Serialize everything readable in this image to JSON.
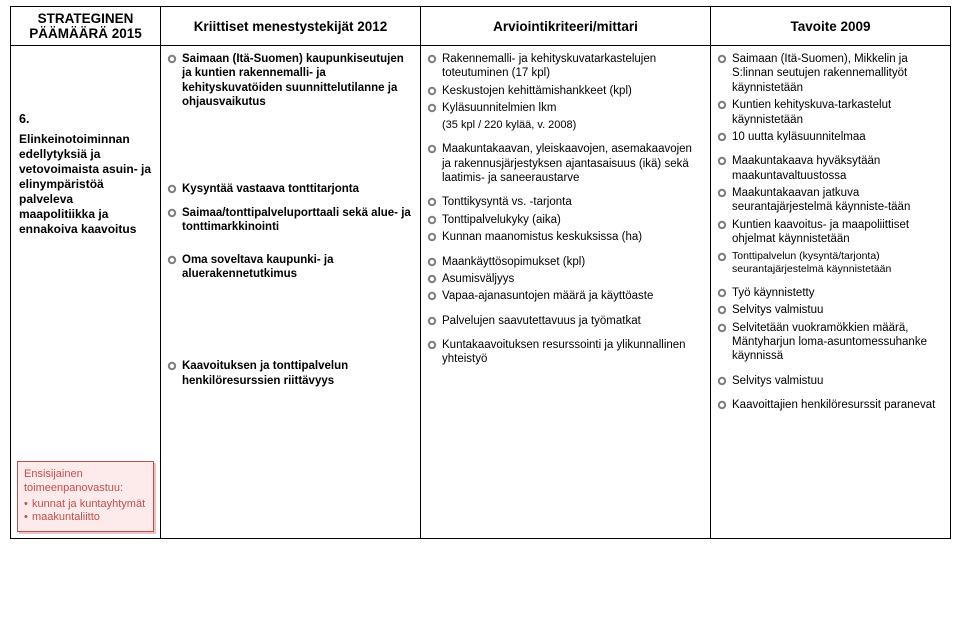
{
  "colors": {
    "text": "#000000",
    "border": "#000000",
    "background": "#ffffff",
    "box_border": "#c0504d",
    "box_fill": "#fdeaea",
    "box_text": "#c0504d",
    "box_shadow": "#e8c4c4",
    "bullet_outer": "#7f7f7f",
    "bullet_inner": "#ffffff"
  },
  "fonts": {
    "family": "Arial",
    "header_size_pt": 10,
    "body_size_pt": 8.5
  },
  "header": {
    "col1_line1": "STRATEGINEN",
    "col1_line2": "PÄÄMÄÄRÄ 2015",
    "col2": "Kriittiset menestystekijät 2012",
    "col3": "Arviointikriteeri/mittari",
    "col4": "Tavoite 2009"
  },
  "goal": {
    "number_title": "6.",
    "title_rest": "Elinkeinotoiminnan edellytyksiä ja vetovoimaista asuin- ja elinympäristöä palveleva maapolitiikka ja ennakoiva kaavoitus",
    "resp_title": "Ensisijainen toimeenpanovastuu:",
    "resp_items": [
      "kunnat ja kuntayhtymät",
      "maakuntaliitto"
    ]
  },
  "ksf_groups": [
    {
      "lead": "Saimaan (Itä-Suomen) kaupunkiseutujen ja kuntien rakennemalli- ja kehityskuvatöiden suunnittelutilanne ja ohjausvaikutus",
      "bold": true
    },
    {
      "lead": "Kysyntää vastaava tonttitarjonta",
      "bold": true
    },
    {
      "lead": "Saimaa/tonttipalveluporttaali sekä alue- ja tonttimarkkinointi",
      "bold": true
    },
    {
      "lead": "Oma soveltava kaupunki- ja aluerakennetutkimus",
      "bold": true
    },
    {
      "lead": "Kaavoituksen ja tonttipalvelun henkilöresurssien riittävyys",
      "bold": true
    }
  ],
  "crit_groups": [
    {
      "items": [
        "Rakennemalli- ja kehityskuvatarkastelujen toteutuminen (17 kpl)",
        "Keskustojen kehittämishankkeet (kpl)",
        "Kyläsuunnitelmien lkm"
      ],
      "sub_after": "(35 kpl / 220 kylää, v. 2008)"
    },
    {
      "items": [
        "Maakuntakaavan, yleiskaavojen, asemakaavojen ja rakennusjärjestyksen ajantasaisuus (ikä) sekä laatimis- ja saneeraustarve"
      ]
    },
    {
      "items": [
        "Tonttikysyntä vs. -tarjonta",
        "Tonttipalvelukyky (aika)",
        "Kunnan maanomistus keskuksissa (ha)"
      ]
    },
    {
      "items": [
        "Maankäyttösopimukset (kpl)",
        "Asumisväljyys",
        "Vapaa-ajanasuntojen määrä ja käyttöaste"
      ]
    },
    {
      "items": [
        "Palvelujen saavutettavuus ja työmatkat"
      ]
    },
    {
      "items": [
        "Kuntakaavoituksen resurssointi ja ylikunnallinen yhteistyö"
      ]
    }
  ],
  "targ_groups": [
    {
      "items": [
        "Saimaan (Itä-Suomen), Mikkelin ja S:linnan seutujen rakennemallityöt käynnistetään",
        "Kuntien kehityskuva-tarkastelut käynnistetään",
        "10 uutta kyläsuunnitelmaa"
      ]
    },
    {
      "items": [
        "Maakuntakaava hyväksytään maakuntavaltuustossa",
        "Maakuntakaavan jatkuva seurantajärjestelmä käynniste-tään",
        "Kuntien kaavoitus- ja maapoliittiset ohjelmat käynnistetään",
        "Tonttipalvelun (kysyntä/tarjonta) seurantajärjestelmä käynnistetään"
      ],
      "small_last": true
    },
    {
      "items": [
        "Työ käynnistetty",
        "Selvitys valmistuu",
        "Selvitetään vuokramökkien määrä, Mäntyharjun loma-asuntomessuhanke käynnissä"
      ]
    },
    {
      "items": [
        "Selvitys valmistuu"
      ]
    },
    {
      "items": [
        "Kaavoittajien henkilöresurssit paranevat"
      ]
    }
  ]
}
